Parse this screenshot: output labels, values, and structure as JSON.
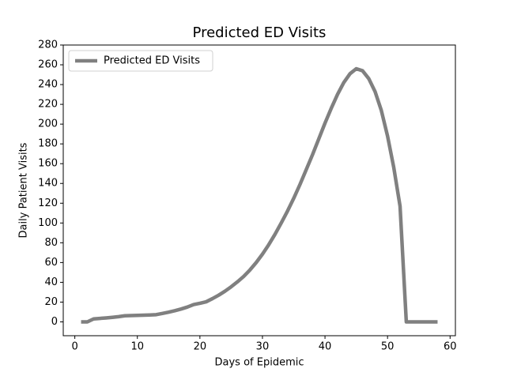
{
  "chart_data": {
    "type": "line",
    "title": "Predicted ED Visits",
    "xlabel": "Days of Epidemic",
    "ylabel": "Daily Patient Visits",
    "x": [
      1,
      2,
      3,
      4,
      5,
      6,
      7,
      8,
      9,
      10,
      11,
      12,
      13,
      14,
      15,
      16,
      17,
      18,
      19,
      20,
      21,
      22,
      23,
      24,
      25,
      26,
      27,
      28,
      29,
      30,
      31,
      32,
      33,
      34,
      35,
      36,
      37,
      38,
      39,
      40,
      41,
      42,
      43,
      44,
      45,
      46,
      47,
      48,
      49,
      50,
      51,
      52,
      53,
      54,
      55,
      56,
      57,
      58
    ],
    "series": [
      {
        "name": "Predicted ED Visits",
        "color": "#808080",
        "values": [
          0,
          0,
          3,
          3.5,
          4,
          4.6,
          5.3,
          6.2,
          6.4,
          6.6,
          6.8,
          7,
          7.3,
          8.5,
          9.8,
          11.3,
          13,
          15,
          17.5,
          18.8,
          20.3,
          23.5,
          27,
          31,
          35.5,
          40.5,
          46,
          52.5,
          60,
          68.5,
          78,
          88.5,
          100,
          112,
          125,
          139,
          154,
          169,
          185,
          201,
          216,
          230,
          242,
          251,
          256,
          254,
          246,
          233,
          214,
          188,
          156,
          117,
          0,
          0,
          0,
          0,
          0,
          0
        ]
      }
    ],
    "xlim": [
      -1.85,
      60.85
    ],
    "ylim": [
      -14,
      280
    ],
    "xticks": [
      0,
      10,
      20,
      30,
      40,
      50,
      60
    ],
    "yticks": [
      0,
      20,
      40,
      60,
      80,
      100,
      120,
      140,
      160,
      180,
      200,
      220,
      240,
      260,
      280
    ],
    "legend": "upper left"
  }
}
